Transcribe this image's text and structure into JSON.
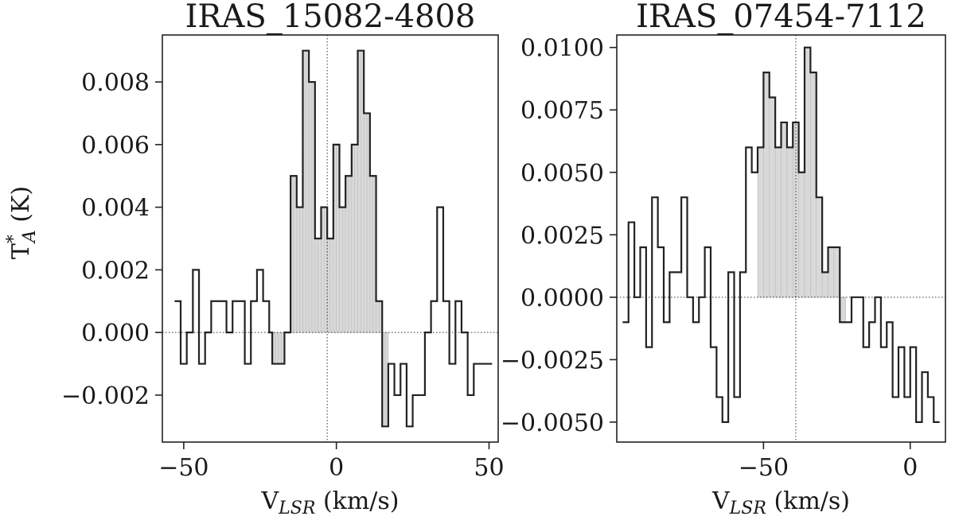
{
  "chart_data": [
    {
      "type": "line",
      "style": "step",
      "title": "IRAS_15082-4808",
      "xlabel_main": "V",
      "xlabel_sub": "LSR",
      "xlabel_units": " (km/s)",
      "ylabel_main": "T",
      "ylabel_sup": "*",
      "ylabel_sub": "A",
      "ylabel_units": " (K)",
      "xlim": [
        -57,
        53
      ],
      "ylim": [
        -0.0035,
        0.0095
      ],
      "xticks": [
        -50,
        0,
        50
      ],
      "xtick_labels": [
        "−50",
        "0",
        "50"
      ],
      "yticks": [
        -0.002,
        0.0,
        0.002,
        0.004,
        0.006,
        0.008
      ],
      "ytick_labels": [
        "−0.002",
        "0.000",
        "0.002",
        "0.004",
        "0.006",
        "0.008"
      ],
      "vline_x": -3,
      "shade_range": [
        -22,
        17
      ],
      "x": [
        -53,
        -52,
        -51,
        -50,
        -49,
        -48,
        -47,
        -46,
        -45,
        -44,
        -43,
        -42,
        -41,
        -40,
        -39,
        -38,
        -37,
        -36,
        -35,
        -34,
        -33,
        -32,
        -31,
        -30,
        -29,
        -28,
        -27,
        -26,
        -25,
        -24,
        -23,
        -22,
        -21,
        -20,
        -19,
        -18,
        -17,
        -16,
        -15,
        -14,
        -13,
        -12,
        -11,
        -10,
        -9,
        -8,
        -7,
        -6,
        -5,
        -4,
        -3,
        -2,
        -1,
        0,
        1,
        2,
        3,
        4,
        5,
        6,
        7,
        8,
        9,
        10,
        11,
        12,
        13,
        14,
        15,
        16,
        17,
        18,
        19,
        20,
        21,
        22,
        23,
        24,
        25,
        26,
        27,
        28,
        29,
        30,
        31,
        32,
        33,
        34,
        35,
        36,
        37,
        38,
        39,
        40,
        41,
        42,
        43,
        44,
        45,
        46,
        47,
        48,
        49,
        50
      ],
      "y": [
        0.001,
        0.001,
        -0.001,
        -0.001,
        0.0,
        0.0,
        0.002,
        0.002,
        -0.001,
        -0.001,
        0.0,
        0.0,
        0.001,
        0.001,
        0.001,
        0.001,
        0.001,
        0.0,
        0.0,
        0.001,
        0.001,
        0.001,
        0.001,
        -0.001,
        -0.001,
        0.001,
        0.001,
        0.002,
        0.002,
        0.001,
        0.001,
        0.0,
        -0.001,
        -0.001,
        -0.001,
        -0.001,
        0.0,
        0.0,
        0.005,
        0.005,
        0.004,
        0.004,
        0.009,
        0.009,
        0.008,
        0.008,
        0.003,
        0.003,
        0.004,
        0.004,
        0.003,
        0.003,
        0.006,
        0.006,
        0.004,
        0.004,
        0.005,
        0.005,
        0.006,
        0.006,
        0.009,
        0.009,
        0.007,
        0.007,
        0.005,
        0.005,
        0.001,
        0.001,
        -0.003,
        -0.003,
        -0.001,
        -0.001,
        -0.002,
        -0.002,
        -0.001,
        -0.001,
        -0.003,
        -0.003,
        -0.002,
        -0.002,
        -0.002,
        -0.002,
        0.0,
        0.0,
        0.001,
        0.001,
        0.004,
        0.004,
        0.001,
        0.001,
        -0.001,
        -0.001,
        0.001,
        0.001,
        0.0,
        0.0,
        -0.002,
        -0.002,
        -0.001,
        -0.001,
        -0.001,
        -0.001,
        -0.001,
        -0.001
      ]
    },
    {
      "type": "line",
      "style": "step",
      "title": "IRAS_07454-7112",
      "xlabel_main": "V",
      "xlabel_sub": "LSR",
      "xlabel_units": " (km/s)",
      "xlim": [
        -100,
        12
      ],
      "ylim": [
        -0.0058,
        0.0105
      ],
      "xticks": [
        -50,
        0
      ],
      "xtick_labels": [
        "−50",
        "0"
      ],
      "yticks": [
        -0.005,
        -0.0025,
        0.0,
        0.0025,
        0.005,
        0.0075,
        0.01
      ],
      "ytick_labels": [
        "−0.0050",
        "−0.0025",
        "0.0000",
        "0.0025",
        "0.0050",
        "0.0075",
        "0.0100"
      ],
      "vline_x": -39,
      "shade_range": [
        -53,
        -23
      ],
      "x": [
        -98,
        -96,
        -94,
        -92,
        -90,
        -88,
        -86,
        -84,
        -82,
        -80,
        -78,
        -76,
        -74,
        -72,
        -70,
        -68,
        -66,
        -64,
        -62,
        -60,
        -58,
        -56,
        -54,
        -52,
        -50,
        -48,
        -46,
        -44,
        -42,
        -40,
        -38,
        -36,
        -34,
        -32,
        -30,
        -28,
        -26,
        -24,
        -22,
        -20,
        -18,
        -16,
        -14,
        -12,
        -10,
        -8,
        -6,
        -4,
        -2,
        0,
        2,
        4,
        6,
        8
      ],
      "y": [
        -0.001,
        0.003,
        0.0,
        0.002,
        -0.002,
        0.004,
        0.002,
        -0.001,
        0.001,
        0.001,
        0.004,
        0.0,
        -0.001,
        0.0,
        0.002,
        -0.002,
        -0.004,
        -0.005,
        0.001,
        -0.004,
        0.001,
        0.006,
        0.005,
        0.006,
        0.009,
        0.008,
        0.006,
        0.007,
        0.006,
        0.007,
        0.005,
        0.01,
        0.009,
        0.004,
        0.001,
        0.002,
        0.002,
        -0.001,
        -0.001,
        0.0,
        0.0,
        -0.002,
        -0.001,
        0.0,
        -0.002,
        -0.001,
        -0.004,
        -0.002,
        -0.004,
        -0.002,
        -0.005,
        -0.003,
        -0.004,
        -0.005
      ]
    }
  ]
}
